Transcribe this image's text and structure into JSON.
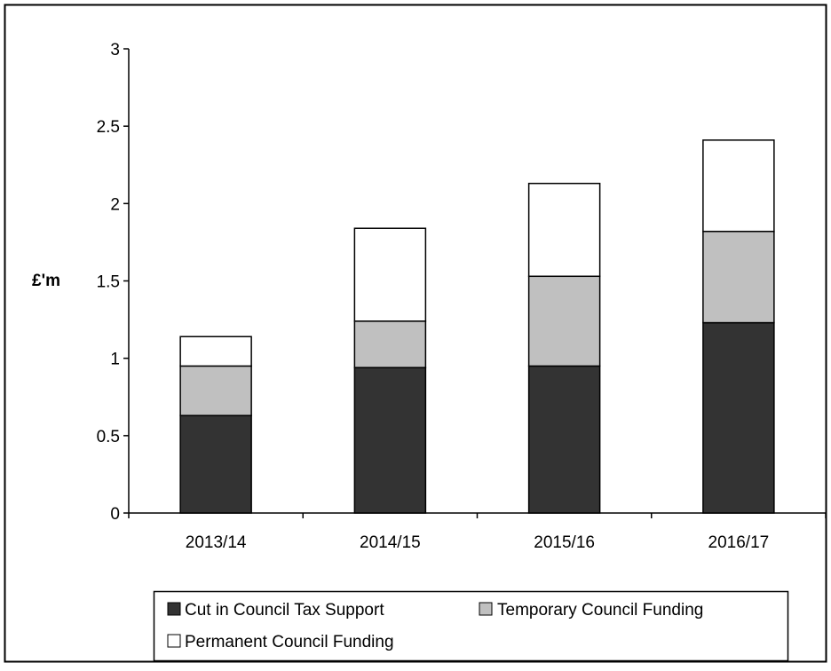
{
  "chart_data": {
    "type": "bar",
    "stacked": true,
    "title": "",
    "xlabel": "",
    "ylabel": "£'m",
    "ylim": [
      0,
      3
    ],
    "yticks": [
      "0",
      "0.5",
      "1",
      "1.5",
      "2",
      "2.5",
      "3"
    ],
    "categories": [
      "2013/14",
      "2014/15",
      "2015/16",
      "2016/17"
    ],
    "series": [
      {
        "name": "Cut in Council Tax Support",
        "values": [
          0.63,
          0.94,
          0.95,
          1.23
        ],
        "color": "#333333"
      },
      {
        "name": "Temporary Council Funding",
        "values": [
          0.32,
          0.3,
          0.58,
          0.59
        ],
        "color": "#c0c0c0"
      },
      {
        "name": "Permanent Council Funding",
        "values": [
          0.19,
          0.6,
          0.6,
          0.59
        ],
        "color": "#ffffff"
      }
    ],
    "grid": false,
    "legend": "bottom"
  }
}
